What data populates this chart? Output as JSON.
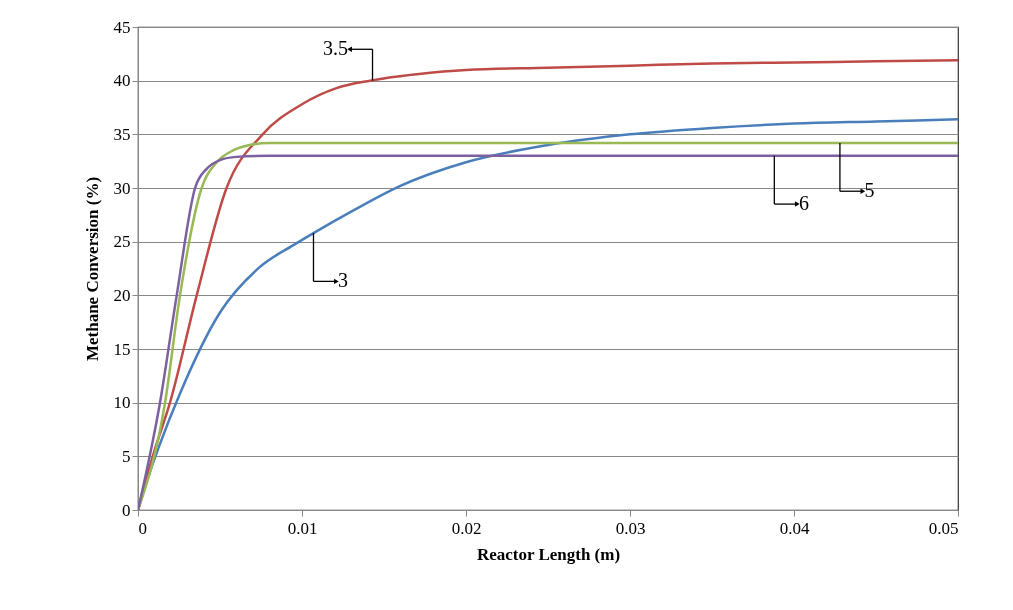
{
  "chart_data": {
    "type": "line",
    "xlabel": "Reactor Length (m)",
    "ylabel": "Methane Conversion  (%)",
    "xlim": [
      0,
      0.05
    ],
    "xticks": [
      0,
      0.01,
      0.02,
      0.03,
      0.04,
      0.05
    ],
    "ylim": [
      0,
      45
    ],
    "yticks": [
      0,
      5,
      10,
      15,
      20,
      25,
      30,
      35,
      40,
      45
    ],
    "grid": "y",
    "series": [
      {
        "color": "#4a7ebb",
        "x": [
          0,
          0.0005,
          0.0013,
          0.0026,
          0.005,
          0.0074,
          0.0095,
          0.0107,
          0.013,
          0.016,
          0.02,
          0.025,
          0.03,
          0.035,
          0.04,
          0.045,
          0.05
        ],
        "values": [
          0,
          2.5,
          6,
          11,
          18.4,
          22.6,
          24.7,
          25.8,
          27.8,
          30.2,
          32.4,
          34,
          35,
          35.6,
          36,
          36.2,
          36.4
        ]
      },
      {
        "color": "#be4b48",
        "x": [
          0,
          0.001,
          0.00195,
          0.00358,
          0.0054,
          0.0076,
          0.01,
          0.0121,
          0.01415,
          0.017,
          0.02,
          0.025,
          0.03,
          0.035,
          0.04,
          0.045,
          0.05
        ],
        "values": [
          0,
          5.5,
          10,
          20,
          30,
          35,
          37.8,
          39.3,
          40,
          40.6,
          41,
          41.2,
          41.4,
          41.6,
          41.7,
          41.8,
          41.9
        ]
      },
      {
        "color": "#98b954",
        "x": [
          0,
          0.00165,
          0.00256,
          0.00388,
          0.0048,
          0.0058,
          0.0068,
          0.008,
          0.01,
          0.02,
          0.03,
          0.04,
          0.05
        ],
        "values": [
          0,
          10,
          20,
          30,
          32.4,
          33.5,
          34,
          34.2,
          34.2,
          34.2,
          34.2,
          34.2,
          34.2
        ]
      },
      {
        "color": "#7d60a0",
        "x": [
          0,
          0.00134,
          0.00236,
          0.00348,
          0.0042,
          0.005,
          0.006,
          0.008,
          0.01,
          0.02,
          0.03,
          0.04,
          0.05
        ],
        "values": [
          0,
          10,
          20,
          30,
          31.8,
          32.6,
          32.9,
          33,
          33,
          33,
          33,
          33,
          33
        ]
      }
    ],
    "annotations": [
      {
        "text": "3.5",
        "x": 0.0143,
        "y": 40
      },
      {
        "text": "3",
        "x": 0.0107,
        "y": 25.8
      },
      {
        "text": "6",
        "x": 0.0388,
        "y": 33
      },
      {
        "text": "5",
        "x": 0.0428,
        "y": 34.2
      }
    ]
  }
}
